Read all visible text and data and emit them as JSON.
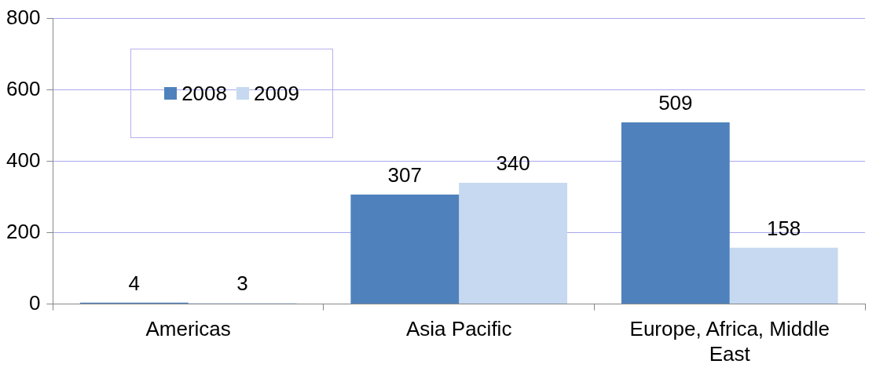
{
  "chart_data": {
    "type": "bar",
    "categories": [
      "Americas",
      "Asia Pacific",
      "Europe, Africa, Middle East"
    ],
    "series": [
      {
        "name": "2008",
        "color": "#4f81bd",
        "values": [
          4,
          307,
          509
        ]
      },
      {
        "name": "2009",
        "color": "#c6d9f1",
        "values": [
          3,
          340,
          158
        ]
      }
    ],
    "ylim": [
      0,
      800
    ],
    "yticks": [
      0,
      200,
      400,
      600,
      800
    ],
    "grid": "y",
    "legend": "top left",
    "data_labels": true
  }
}
